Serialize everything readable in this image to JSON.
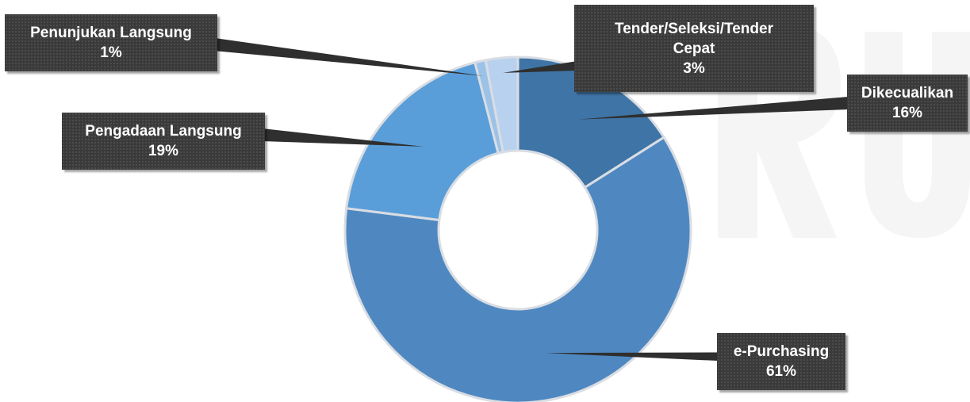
{
  "chart_data": {
    "type": "pie",
    "variant": "doughnut",
    "title": "",
    "slices": [
      {
        "category": "Dikecualikan",
        "value": 16,
        "label": "16%",
        "color": "#3f74a6"
      },
      {
        "category": "e-Purchasing",
        "value": 61,
        "label": "61%",
        "color": "#4f88c0"
      },
      {
        "category": "Pengadaan Langsung",
        "value": 19,
        "label": "19%",
        "color": "#5a9ed9"
      },
      {
        "category": "Penunjukan Langsung",
        "value": 1,
        "label": "1%",
        "color": "#9cc2e8"
      },
      {
        "category": "Tender/Seleksi/Tender Cepat",
        "value": 3,
        "label": "3%",
        "color": "#b7d1ef"
      }
    ],
    "legend": "none",
    "data_labels": "callout"
  },
  "callout_text": {
    "tender_line1": "Tender/Seleksi/Tender",
    "tender_line2": "Cepat"
  }
}
